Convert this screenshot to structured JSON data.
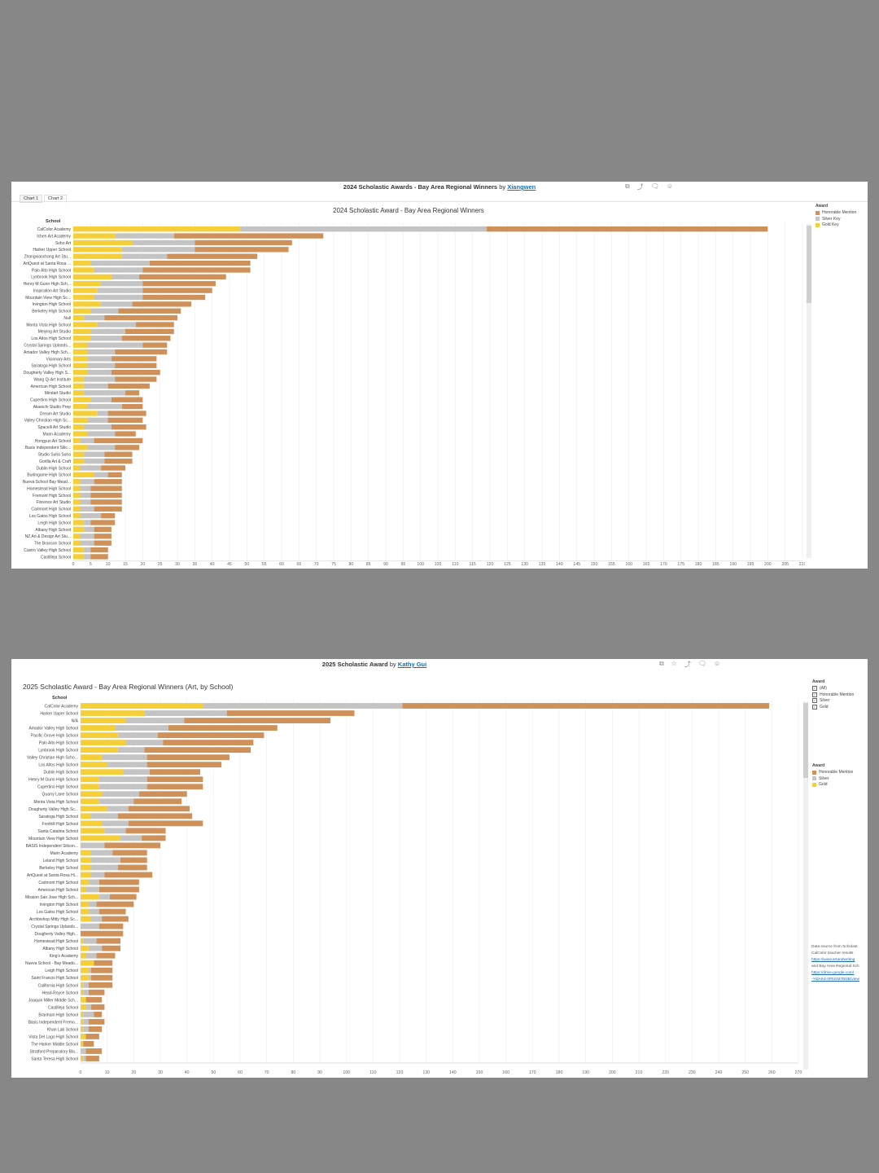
{
  "colors": {
    "gold": "#f5cf3a",
    "silver": "#c4c4c4",
    "hm": "#cf915a",
    "bg": "#878787",
    "grid": "#eeeeee"
  },
  "panel1": {
    "title": "2024 Scholastic Awards - Bay Area Regional Winners",
    "by": "by",
    "author": "Xiangwen",
    "tabs": [
      "Chart 1",
      "Chart 2"
    ],
    "icons": [
      "copy-icon",
      "share-icon",
      "comment-icon",
      "account-icon"
    ]
  },
  "panel2": {
    "title": "2025 Scholastic Award",
    "by": "by",
    "author": "Kathy Gui",
    "icons": [
      "copy-icon",
      "star-icon",
      "share-icon",
      "comment-icon",
      "account-icon"
    ],
    "note": {
      "lines": [
        "Data source from Scholast",
        "CalColor teacher results"
      ],
      "link1": "https://www.artandwriting",
      "mid": "and Bay Area Regional Sch",
      "link2a": "https://drive.google.com/",
      "link2b": "-YldAKd-0P5GM7BDB/view"
    }
  },
  "chart_data": [
    {
      "type": "bar",
      "orientation": "horizontal",
      "stacked": true,
      "title": "2024 Scholastic Award - Bay Area Regional Winners",
      "row_header": "School",
      "legend_title": "Award",
      "legend_entries": [
        "Honorable Mention",
        "Silver Key",
        "Gold Key"
      ],
      "legend_position": "right",
      "xlim": [
        0,
        210
      ],
      "xticks": [
        0,
        5,
        10,
        15,
        20,
        25,
        30,
        35,
        40,
        45,
        50,
        55,
        60,
        65,
        70,
        75,
        80,
        85,
        90,
        95,
        100,
        105,
        110,
        115,
        120,
        125,
        130,
        135,
        140,
        145,
        150,
        155,
        160,
        165,
        170,
        175,
        180,
        185,
        190,
        195,
        200,
        205,
        210
      ],
      "categories": [
        "CalColor Academy",
        "Ichen Art Academy",
        "Soho Art",
        "Harker Upper School",
        "Zhangxiaochang Art Stu...",
        "ArtQuest at Santa Rosa ...",
        "Palo Alto High School",
        "Lynbrook High School",
        "Henry M Gunn High Sch...",
        "Inspiration Art Studio",
        "Mountain View High Sc...",
        "Irvington High School",
        "Berkeley High School",
        "Null",
        "Monta Vista High School",
        "Meiying Art Studio",
        "Los Altos High School",
        "Crystal Springs Uplands...",
        "Amador Valley High Sch...",
        "Visionary Arts",
        "Saratoga High School",
        "Dougherty Valley High S...",
        "Wang Qi Art Institute",
        "American High School",
        "Mindart Studio",
        "Cupertino High School",
        "Akaeichi Studio Prep",
        "Dream Art Studio",
        "Valley Christian High Sc...",
        "Spacelli Art Studio",
        "Marin Academy",
        "Hongyun Art School",
        "Basis Independent Silic...",
        "Studio Suha Suha",
        "Gorilla Art & Craft",
        "Dublin High School",
        "Burlingame High School",
        "Nueva School Bay Mead...",
        "Homestead High School",
        "Fremont High School",
        "Florence Art Studio",
        "Carlmont High School",
        "Los Gatos High School",
        "Leigh High School",
        "Albany High School",
        "NZ Art & Design Art Stu...",
        "The Branson School",
        "Castro Valley High School",
        "Castilleja School"
      ],
      "series": [
        {
          "name": "Gold Key",
          "values": [
            48,
            12,
            17,
            14,
            14,
            5,
            6,
            11,
            8,
            7,
            6,
            8,
            5,
            3,
            7,
            5,
            5,
            4,
            4,
            4,
            4,
            4,
            3,
            3,
            3,
            5,
            4,
            7,
            4,
            3,
            4,
            2,
            4,
            3,
            3,
            2,
            6,
            2,
            2,
            2,
            2,
            2,
            2,
            3,
            3,
            2,
            2,
            3,
            3
          ]
        },
        {
          "name": "Silver Key",
          "values": [
            71,
            17,
            18,
            21,
            13,
            17,
            14,
            8,
            12,
            13,
            14,
            9,
            8,
            6,
            11,
            10,
            9,
            16,
            8,
            7,
            8,
            7,
            9,
            7,
            12,
            6,
            10,
            3,
            6,
            8,
            8,
            4,
            8,
            6,
            6,
            6,
            4,
            4,
            3,
            3,
            3,
            4,
            6,
            2,
            3,
            4,
            4,
            2,
            2
          ]
        },
        {
          "name": "Honorable Mention",
          "values": [
            81,
            43,
            28,
            27,
            26,
            29,
            31,
            25,
            21,
            20,
            18,
            17,
            18,
            21,
            11,
            14,
            14,
            7,
            15,
            13,
            12,
            14,
            12,
            12,
            4,
            9,
            6,
            11,
            10,
            10,
            6,
            14,
            7,
            8,
            8,
            7,
            4,
            8,
            9,
            9,
            9,
            8,
            4,
            7,
            5,
            5,
            5,
            5,
            5
          ]
        }
      ]
    },
    {
      "type": "bar",
      "orientation": "horizontal",
      "stacked": true,
      "title": "2025 Scholastic Award - Bay Area Regional Winners (Art, by School)",
      "row_header": "School",
      "legend_title": "Award",
      "legend_entries": [
        "Honorable Mention",
        "Silver",
        "Gold"
      ],
      "filter_title": "Award",
      "filter_options": [
        "(All)",
        "Honorable Mention",
        "Silver",
        "Gold"
      ],
      "legend_position": "right",
      "xlim": [
        0,
        270
      ],
      "xticks": [
        0,
        10,
        20,
        30,
        40,
        50,
        60,
        70,
        80,
        90,
        100,
        110,
        120,
        130,
        140,
        150,
        160,
        170,
        180,
        190,
        200,
        210,
        220,
        230,
        240,
        250,
        260,
        270
      ],
      "categories": [
        "CalColor Academy",
        "Harker Upper School",
        "N/A",
        "Amador Valley High School",
        "Pacific Grove High School",
        "Palo Alto High School",
        "Lynbrook High School",
        "Valley Christian High Scho...",
        "Los Altos High School",
        "Dublin High School",
        "Henry M Gunn High School",
        "Cupertino High School",
        "Quarry Lane School",
        "Monta Vista High School",
        "Dougherty Valley High Sc...",
        "Saratoga High School",
        "Foothill High School",
        "Santa Catalina School",
        "Mountain View High School",
        "BASIS Independent Silicon...",
        "Marin Academy",
        "Leland High School",
        "Berkeley High School",
        "ArtQuest at Santa Rosa Hi...",
        "Carlmont High School",
        "American High School",
        "Mission San Jose High Sch...",
        "Irvington High School",
        "Los Gatos High School",
        "Archbishop Mitty High Sc...",
        "Crystal Springs Uplands...",
        "Dougherty Valley High...",
        "Homestead High School",
        "Albany High School",
        "King's Academy",
        "Nueva School - Bay Meado...",
        "Leigh High School",
        "Saint Francis High School",
        "California High School",
        "Head-Royce School",
        "Joaquin Miller Middle Sch...",
        "Castilleja School",
        "Branham High School",
        "Basis Independent Fremo...",
        "Khan Lab School",
        "Vista Del Lago High School",
        "The Harker Middle School",
        "Stratford Preparatory Bla...",
        "Santa Teresa High School"
      ],
      "series": [
        {
          "name": "Gold",
          "values": [
            46,
            24,
            17,
            13,
            14,
            17,
            14,
            8,
            10,
            16,
            7,
            7,
            8,
            7,
            10,
            4,
            8,
            9,
            15,
            0,
            4,
            4,
            4,
            4,
            3,
            2,
            7,
            3,
            3,
            4,
            0,
            0,
            1,
            3,
            2,
            5,
            3,
            3,
            1,
            1,
            2,
            2,
            1,
            1,
            1,
            2,
            1,
            0,
            1
          ]
        },
        {
          "name": "Silver",
          "values": [
            75,
            31,
            22,
            20,
            15,
            14,
            10,
            17,
            15,
            10,
            18,
            18,
            14,
            13,
            8,
            10,
            10,
            8,
            8,
            9,
            8,
            11,
            10,
            5,
            4,
            5,
            4,
            3,
            4,
            4,
            7,
            0,
            5,
            5,
            4,
            0,
            1,
            1,
            2,
            2,
            0,
            2,
            4,
            2,
            2,
            0,
            0,
            2,
            1
          ]
        },
        {
          "name": "Honorable Mention",
          "values": [
            138,
            48,
            55,
            41,
            40,
            34,
            40,
            31,
            28,
            19,
            21,
            21,
            18,
            18,
            23,
            28,
            28,
            15,
            9,
            21,
            13,
            10,
            11,
            18,
            15,
            15,
            10,
            14,
            10,
            10,
            9,
            16,
            9,
            7,
            7,
            7,
            8,
            8,
            9,
            6,
            6,
            5,
            3,
            6,
            5,
            5,
            4,
            6,
            5
          ]
        }
      ]
    }
  ]
}
